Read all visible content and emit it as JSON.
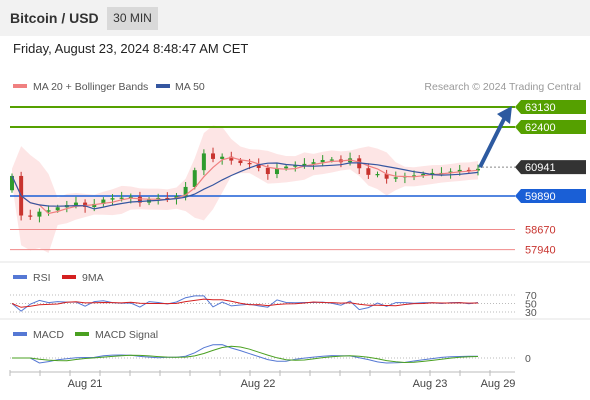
{
  "header": {
    "title": "Bitcoin / USD",
    "timeframe": "30 MIN",
    "datetime": "Friday, August 23, 2024 8:48:47 AM CET"
  },
  "legend": {
    "ma20": "MA 20 + Bollinger Bands",
    "ma50": "MA 50",
    "credit": "Research © 2024 Trading Central",
    "rsi": "RSI",
    "rsi_ma": "9MA",
    "macd": "MACD",
    "macd_signal": "MACD Signal"
  },
  "colors": {
    "candle_up": "#2e9b2e",
    "candle_down": "#c8342f",
    "ma20": "#f08080",
    "ma50": "#3556a0",
    "band": "#fde0e0",
    "resistance": "#55a000",
    "support_strong": "#1a5fd6",
    "support_weak": "#f08a8a",
    "pivot": "#333333",
    "arrow": "#2d5aa0"
  },
  "chart_data": {
    "type": "candlestick",
    "x_ticks": [
      "Aug 21",
      "Aug 22",
      "Aug 23",
      "Aug 29"
    ],
    "price_levels": [
      {
        "value": 63130,
        "label": "63130",
        "kind": "resistance"
      },
      {
        "value": 62400,
        "label": "62400",
        "kind": "resistance"
      },
      {
        "value": 60941,
        "label": "60941",
        "kind": "current"
      },
      {
        "value": 59890,
        "label": "59890",
        "kind": "support"
      },
      {
        "value": 58670,
        "label": "58670",
        "kind": "support-minor"
      },
      {
        "value": 57940,
        "label": "57940",
        "kind": "support-minor"
      }
    ],
    "close_path": [
      60620,
      59180,
      59140,
      59320,
      59370,
      59480,
      59560,
      59650,
      59490,
      59600,
      59760,
      59810,
      59830,
      59860,
      59650,
      59760,
      59820,
      59790,
      59880,
      60220,
      60830,
      61440,
      61240,
      61320,
      61180,
      61090,
      61050,
      60910,
      60690,
      60900,
      60960,
      61000,
      61060,
      61120,
      61200,
      61220,
      61120,
      61260,
      60900,
      60660,
      60690,
      60520,
      60570,
      60620,
      60640,
      60690,
      60730,
      60730,
      60780,
      60840,
      60820,
      60880
    ],
    "forecast_arrow": {
      "from": 60941,
      "to": 63130
    },
    "rsi": {
      "levels": [
        70,
        50,
        30
      ]
    },
    "macd": {
      "levels": [
        0
      ]
    }
  }
}
